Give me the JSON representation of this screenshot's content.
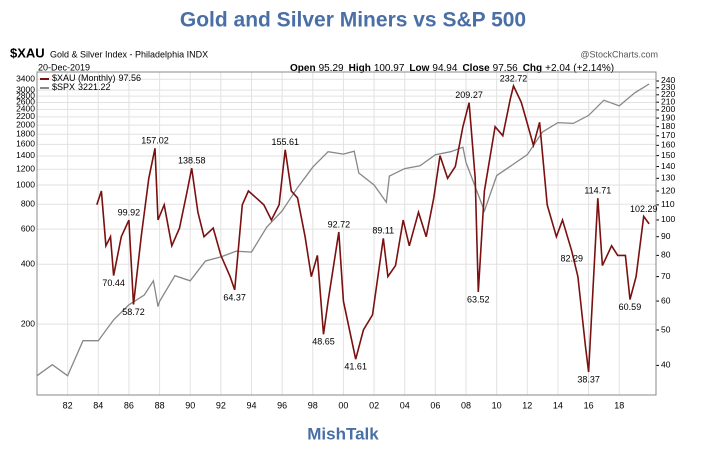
{
  "chart_data": {
    "type": "line",
    "title": "Gold and Silver Miners vs S&P 500",
    "symbol": "$XAU",
    "description": "Gold & Silver Index - Philadelphia INDX",
    "source": "@StockCharts.com",
    "date": "20-Dec-2019",
    "quote": [
      {
        "label": "Open",
        "value": 95.29
      },
      {
        "label": "High",
        "value": 100.97
      },
      {
        "label": "Low",
        "value": 94.94
      },
      {
        "label": "Close",
        "value": 97.56
      },
      {
        "label": "Chg",
        "value": "+2.04 (+2.14%)"
      }
    ],
    "footer": "MishTalk",
    "log_scale": true,
    "grid": true,
    "xlim": [
      1980,
      2020.4
    ],
    "xticks": [
      {
        "value": 1982,
        "label": "82"
      },
      {
        "value": 1984,
        "label": "84"
      },
      {
        "value": 1986,
        "label": "86"
      },
      {
        "value": 1988,
        "label": "88"
      },
      {
        "value": 1990,
        "label": "90"
      },
      {
        "value": 1992,
        "label": "92"
      },
      {
        "value": 1994,
        "label": "94"
      },
      {
        "value": 1996,
        "label": "96"
      },
      {
        "value": 1998,
        "label": "98"
      },
      {
        "value": 2000,
        "label": "00"
      },
      {
        "value": 2002,
        "label": "02"
      },
      {
        "value": 2004,
        "label": "04"
      },
      {
        "value": 2006,
        "label": "06"
      },
      {
        "value": 2008,
        "label": "08"
      },
      {
        "value": 2010,
        "label": "10"
      },
      {
        "value": 2012,
        "label": "12"
      },
      {
        "value": 2014,
        "label": "14"
      },
      {
        "value": 2016,
        "label": "16"
      },
      {
        "value": 2018,
        "label": "18"
      }
    ],
    "ylim": [
      88,
      3700
    ],
    "yticks": [
      200,
      400,
      600,
      800,
      1000,
      1200,
      1400,
      1600,
      1800,
      2000,
      2200,
      2400,
      2600,
      2800,
      3000,
      3400
    ],
    "y2lim": [
      33.2,
      254
    ],
    "y2ticks": [
      40,
      50,
      60,
      70,
      80,
      90,
      100,
      110,
      120,
      130,
      140,
      150,
      160,
      170,
      180,
      190,
      200,
      210,
      220,
      230,
      240
    ],
    "series": [
      {
        "name": "$XAU (Monthly)",
        "legend_value": 97.56,
        "color": "#7a1010",
        "axis": "y2",
        "x": [
          1983.9,
          1984.2,
          1984.5,
          1984.8,
          1985.0,
          1985.5,
          1986.0,
          1986.3,
          1986.8,
          1987.3,
          1987.7,
          1987.9,
          1988.3,
          1988.8,
          1989.3,
          1989.8,
          1990.1,
          1990.5,
          1990.9,
          1991.5,
          1992.0,
          1992.6,
          1992.9,
          1993.4,
          1993.8,
          1994.3,
          1994.8,
          1995.3,
          1995.8,
          1996.2,
          1996.6,
          1997.0,
          1997.5,
          1997.9,
          1998.3,
          1998.7,
          1999.0,
          1999.7,
          2000.0,
          2000.8,
          2001.3,
          2001.9,
          2002.6,
          2002.9,
          2003.4,
          2003.9,
          2004.3,
          2004.9,
          2005.4,
          2005.9,
          2006.3,
          2006.8,
          2007.3,
          2007.8,
          2008.2,
          2008.6,
          2008.8,
          2009.2,
          2009.9,
          2010.4,
          2010.9,
          2011.1,
          2011.6,
          2011.9,
          2012.4,
          2012.8,
          2013.3,
          2013.9,
          2014.3,
          2014.9,
          2015.3,
          2015.8,
          2016.0,
          2016.6,
          2016.9,
          2017.5,
          2017.9,
          2018.4,
          2018.7,
          2019.1,
          2019.6,
          2019.95
        ],
        "values": [
          110,
          120,
          85,
          90,
          70.44,
          90,
          99.92,
          58.72,
          90,
          130,
          157.02,
          100,
          110,
          85,
          95,
          120,
          138.58,
          105,
          90,
          95,
          80,
          70,
          64.37,
          110,
          120,
          115,
          110,
          100,
          110,
          155.61,
          120,
          115,
          90,
          70,
          80,
          48.65,
          60,
          92.72,
          60,
          41.61,
          50,
          55,
          89.11,
          70,
          75,
          100,
          85,
          105,
          90,
          115,
          150,
          130,
          140,
          180,
          209.27,
          130,
          63.52,
          120,
          180,
          170,
          215,
          232.72,
          210,
          190,
          160,
          185,
          110,
          90,
          100,
          82.29,
          70,
          45,
          38.37,
          114.71,
          75,
          85,
          80,
          80,
          60.59,
          70,
          102.29,
          97.56
        ]
      },
      {
        "name": "$SPX",
        "legend_value": 3221.22,
        "color": "#888888",
        "axis": "y",
        "x": [
          1980,
          1981,
          1982,
          1983,
          1984,
          1985,
          1986,
          1987,
          1987.6,
          1987.9,
          1988,
          1989,
          1990,
          1991,
          1992,
          1993,
          1994,
          1995,
          1996,
          1997,
          1998,
          1999,
          2000,
          2000.7,
          2001,
          2002,
          2002.8,
          2003,
          2004,
          2005,
          2006,
          2007,
          2007.8,
          2008,
          2009.2,
          2010,
          2011,
          2012,
          2013,
          2014,
          2015,
          2016,
          2017,
          2018,
          2019,
          2019.95
        ],
        "values": [
          110,
          125,
          110,
          165,
          165,
          210,
          250,
          280,
          330,
          245,
          260,
          350,
          330,
          415,
          435,
          465,
          460,
          615,
          740,
          970,
          1230,
          1470,
          1430,
          1480,
          1150,
          1000,
          820,
          1110,
          1210,
          1250,
          1420,
          1470,
          1550,
          1300,
          740,
          1115,
          1260,
          1420,
          1850,
          2060,
          2040,
          2240,
          2670,
          2500,
          2900,
          3221.22
        ]
      }
    ],
    "annotations": [
      {
        "x": 1987.7,
        "y": 157.02,
        "position": "above"
      },
      {
        "x": 1986.0,
        "y": 99.92,
        "position": "above"
      },
      {
        "x": 1985.0,
        "y": 70.44,
        "position": "below"
      },
      {
        "x": 1986.3,
        "y": 58.72,
        "position": "below"
      },
      {
        "x": 1990.1,
        "y": 138.58,
        "position": "above"
      },
      {
        "x": 1992.9,
        "y": 64.37,
        "position": "below"
      },
      {
        "x": 1996.2,
        "y": 155.61,
        "position": "above"
      },
      {
        "x": 1999.7,
        "y": 92.72,
        "position": "above"
      },
      {
        "x": 1998.7,
        "y": 48.65,
        "position": "below"
      },
      {
        "x": 2000.8,
        "y": 41.61,
        "position": "below"
      },
      {
        "x": 2002.6,
        "y": 89.11,
        "position": "above"
      },
      {
        "x": 2008.2,
        "y": 209.27,
        "position": "above"
      },
      {
        "x": 2008.8,
        "y": 63.52,
        "position": "below"
      },
      {
        "x": 2011.1,
        "y": 232.72,
        "position": "above"
      },
      {
        "x": 2014.9,
        "y": 82.29,
        "position": "below"
      },
      {
        "x": 2016.6,
        "y": 114.71,
        "position": "above"
      },
      {
        "x": 2016.0,
        "y": 38.37,
        "position": "below"
      },
      {
        "x": 2018.7,
        "y": 60.59,
        "position": "below"
      },
      {
        "x": 2019.6,
        "y": 102.29,
        "position": "above"
      }
    ]
  }
}
